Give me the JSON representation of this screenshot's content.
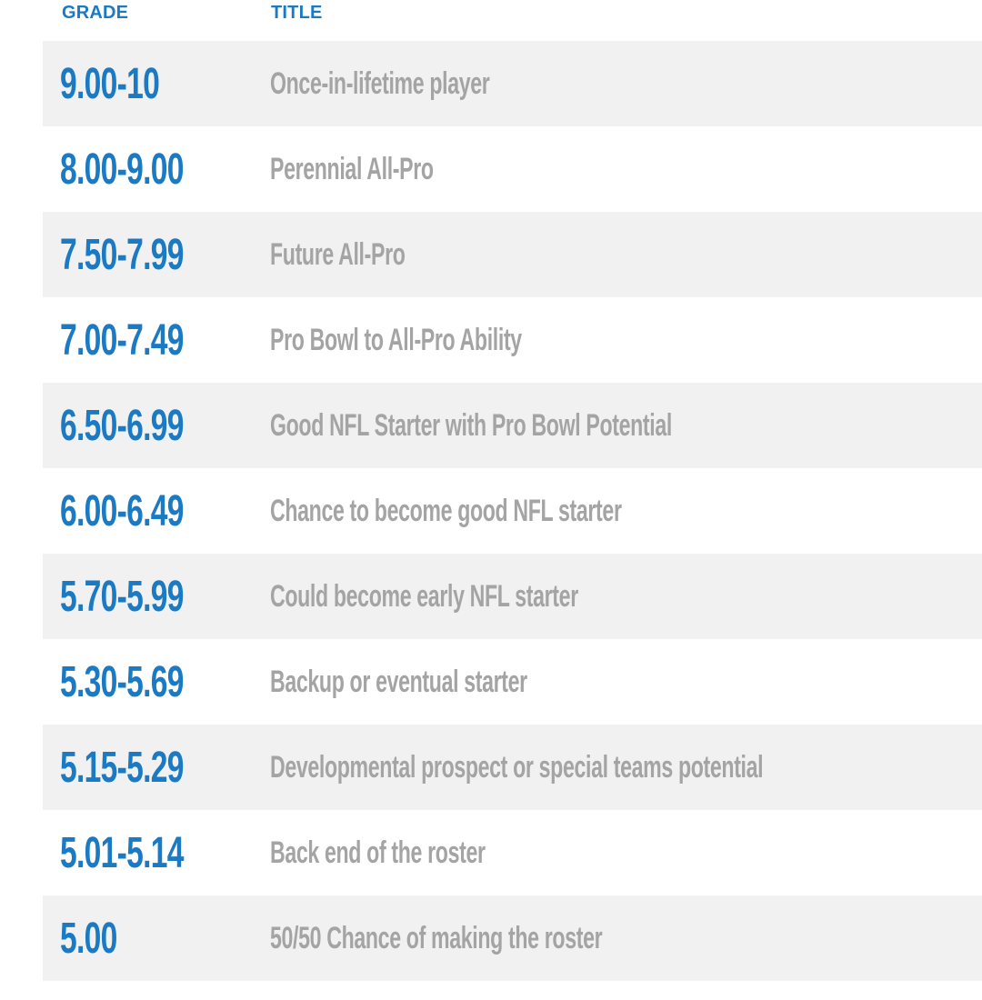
{
  "header": {
    "grade_label": "GRADE",
    "title_label": "TITLE"
  },
  "rows": [
    {
      "grade": "9.00-10",
      "title": "Once-in-lifetime player"
    },
    {
      "grade": "8.00-9.00",
      "title": "Perennial All-Pro"
    },
    {
      "grade": "7.50-7.99",
      "title": "Future All-Pro"
    },
    {
      "grade": "7.00-7.49",
      "title": "Pro Bowl to All-Pro Ability"
    },
    {
      "grade": "6.50-6.99",
      "title": "Good NFL Starter with Pro Bowl Potential"
    },
    {
      "grade": "6.00-6.49",
      "title": "Chance to become good NFL starter"
    },
    {
      "grade": "5.70-5.99",
      "title": "Could become early NFL starter"
    },
    {
      "grade": "5.30-5.69",
      "title": "Backup or eventual starter"
    },
    {
      "grade": "5.15-5.29",
      "title": "Developmental prospect or special teams potential"
    },
    {
      "grade": "5.01-5.14",
      "title": "Back end of the roster"
    },
    {
      "grade": "5.00",
      "title": "50/50 Chance of making the roster"
    }
  ],
  "colors": {
    "grade_text": "#1a7ac4",
    "title_text": "#a4a4a4",
    "alt_row_bg": "#f1f1f1"
  }
}
